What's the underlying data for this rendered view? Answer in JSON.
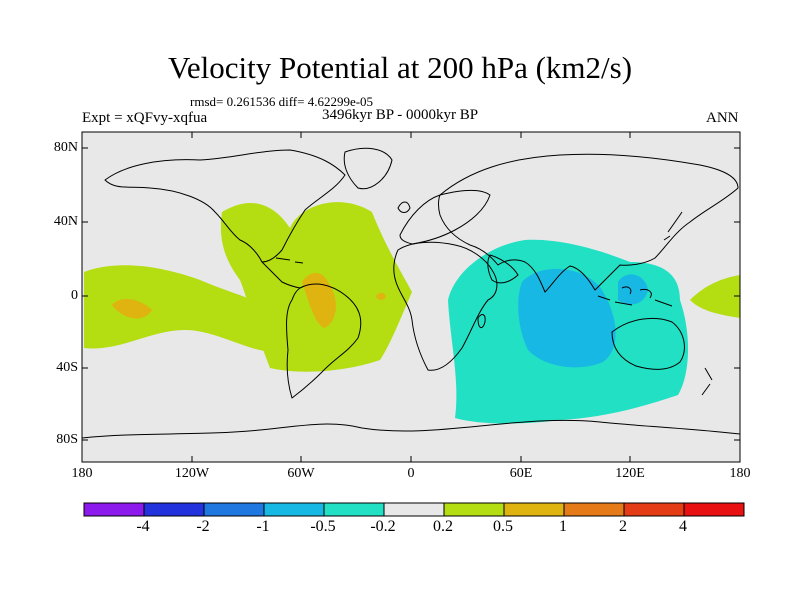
{
  "title": "Velocity Potential at 200 hPa (km2/s)",
  "stats": "rmsd= 0.261536 diff= 4.62299e-05",
  "experiment": "Expt = xQFvy-xqfua",
  "period": "3496kyr BP - 0000kyr BP",
  "season": "ANN",
  "y_ticks": [
    "80N",
    "40N",
    "0",
    "40S",
    "80S"
  ],
  "x_ticks": [
    "180",
    "120W",
    "60W",
    "0",
    "60E",
    "120E",
    "180"
  ],
  "colorbar": {
    "labels": [
      "-4",
      "-2",
      "-1",
      "-0.5",
      "-0.2",
      "0.2",
      "0.5",
      "1",
      "2",
      "4"
    ],
    "colors": [
      "#8c1aed",
      "#2233dd",
      "#1e78e0",
      "#18b8e4",
      "#22e0c4",
      "#e8e8e8",
      "#b4dd12",
      "#e0b410",
      "#e47a18",
      "#e43c14",
      "#e81010"
    ]
  },
  "map_colors": {
    "background": "#e8e8e8",
    "positive_05": "#b4dd12",
    "positive_1": "#e0b410",
    "negative_05": "#22e0c4",
    "negative_1": "#18b8e4",
    "negative_2": "#1e78e0",
    "coastline": "#000000"
  }
}
